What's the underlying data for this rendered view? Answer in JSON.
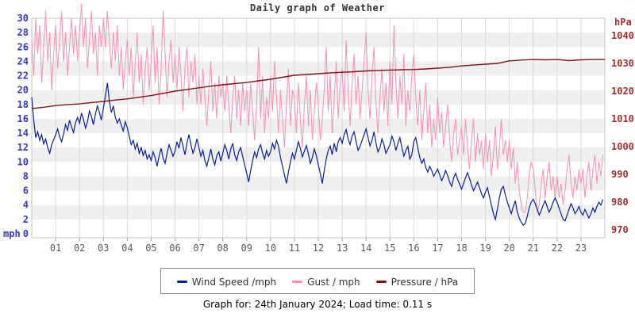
{
  "title": "Daily graph of Weather",
  "footer": {
    "text": "Graph for: 24th January 2024; Load time: 0.11 s"
  },
  "legend": {
    "items": [
      {
        "label": "Wind Speed /mph",
        "color": "#0B1F97"
      },
      {
        "label": "Gust / mph",
        "color": "#F98FB3"
      },
      {
        "label": "Pressure / hPa",
        "color": "#7C1418"
      }
    ]
  },
  "chart_data": {
    "type": "line",
    "title": "Daily graph of Weather",
    "x_unit": "hour of day (00:00-24:00)",
    "x_range": [
      0,
      24
    ],
    "x_tick_labels": [
      "01",
      "02",
      "03",
      "04",
      "05",
      "06",
      "07",
      "08",
      "09",
      "10",
      "11",
      "12",
      "13",
      "14",
      "15",
      "16",
      "17",
      "18",
      "19",
      "20",
      "21",
      "22",
      "23"
    ],
    "left_axis": {
      "label": "mph",
      "min": 0,
      "max": 30,
      "tick_step": 2,
      "color": "#3838C0"
    },
    "right_axis": {
      "label": "hPa",
      "min": 970,
      "max": 1040,
      "tick_step": 10,
      "color": "#A33030"
    },
    "style": {
      "band_fill": "#EFEFEF",
      "grid_color": "#DADADA",
      "border_color": "#C6C6C6",
      "tick_color": "#999999",
      "x_label_color": "#5A5A5A",
      "background": "#FFFFFF"
    },
    "series": [
      {
        "name": "Wind Speed /mph",
        "axis": "left",
        "color": "#0B1F97",
        "width": 1.2,
        "interval_minutes": 5,
        "values": [
          19.0,
          15.8,
          13.4,
          14.2,
          13.0,
          13.8,
          12.5,
          13.2,
          12.0,
          11.2,
          12.4,
          13.1,
          13.8,
          14.6,
          13.5,
          12.8,
          13.9,
          15.2,
          14.4,
          15.8,
          14.9,
          14.1,
          15.5,
          16.2,
          15.4,
          16.8,
          15.9,
          14.7,
          15.6,
          17.1,
          16.3,
          15.2,
          16.6,
          17.8,
          16.9,
          15.8,
          17.5,
          19.2,
          21.0,
          18.4,
          16.9,
          17.8,
          16.2,
          15.4,
          16.0,
          15.1,
          14.3,
          15.6,
          14.8,
          13.6,
          12.4,
          13.0,
          11.8,
          12.6,
          11.2,
          12.0,
          10.9,
          11.6,
          10.4,
          11.0,
          10.2,
          11.4,
          10.6,
          9.4,
          10.8,
          11.9,
          10.5,
          9.8,
          11.2,
          12.4,
          11.6,
          10.8,
          11.5,
          12.8,
          11.9,
          13.4,
          12.2,
          11.0,
          12.6,
          13.8,
          12.4,
          11.2,
          12.0,
          13.2,
          12.0,
          10.8,
          11.6,
          10.2,
          9.4,
          10.6,
          11.8,
          10.4,
          9.6,
          10.9,
          11.4,
          10.1,
          11.2,
          12.4,
          11.6,
          10.4,
          11.8,
          12.6,
          11.0,
          10.2,
          11.4,
          12.0,
          10.8,
          9.6,
          8.4,
          7.2,
          8.8,
          10.2,
          11.4,
          10.6,
          11.8,
          12.4,
          11.2,
          10.4,
          11.6,
          10.8,
          11.4,
          12.6,
          11.8,
          13.0,
          12.2,
          10.6,
          9.4,
          8.2,
          7.0,
          8.6,
          10.0,
          11.2,
          10.4,
          11.6,
          12.8,
          11.9,
          10.7,
          11.5,
          12.3,
          11.1,
          9.8,
          10.6,
          11.8,
          10.9,
          9.6,
          8.4,
          7.0,
          8.8,
          10.4,
          11.6,
          12.2,
          11.0,
          12.6,
          11.4,
          12.8,
          13.4,
          12.6,
          13.8,
          14.5,
          13.2,
          12.4,
          13.6,
          14.2,
          12.8,
          11.6,
          12.2,
          13.0,
          13.8,
          14.6,
          13.4,
          12.2,
          13.0,
          14.2,
          12.6,
          11.4,
          12.0,
          13.2,
          12.4,
          11.2,
          11.8,
          12.4,
          13.6,
          12.8,
          11.6,
          12.6,
          13.4,
          12.0,
          10.8,
          11.6,
          12.2,
          10.4,
          11.0,
          12.8,
          13.4,
          12.0,
          10.6,
          9.8,
          10.4,
          9.2,
          8.6,
          9.4,
          8.8,
          8.0,
          8.5,
          9.0,
          8.2,
          7.4,
          8.0,
          8.8,
          8.1,
          7.2,
          6.6,
          7.8,
          8.4,
          7.6,
          6.9,
          6.2,
          7.0,
          7.8,
          8.5,
          7.7,
          6.8,
          6.0,
          6.6,
          7.2,
          6.4,
          5.6,
          5.0,
          5.8,
          6.4,
          5.2,
          4.0,
          2.8,
          2.0,
          3.4,
          5.0,
          6.2,
          6.6,
          5.4,
          4.4,
          3.6,
          2.8,
          3.8,
          4.6,
          3.0,
          2.2,
          1.6,
          1.2,
          1.4,
          2.4,
          3.6,
          4.4,
          4.8,
          4.2,
          3.4,
          2.6,
          3.2,
          4.0,
          4.6,
          3.8,
          3.0,
          3.6,
          4.4,
          5.0,
          4.4,
          3.6,
          2.8,
          2.0,
          1.8,
          2.6,
          3.4,
          4.2,
          3.6,
          2.8,
          3.2,
          3.8,
          3.0,
          2.6,
          3.4,
          2.8,
          2.2,
          2.8,
          3.6,
          3.0,
          3.8,
          4.4,
          4.0,
          4.8
        ]
      },
      {
        "name": "Gust / mph",
        "axis": "left",
        "color": "#F98FB3",
        "width": 1,
        "interval_minutes": 5,
        "values": [
          27,
          22,
          30,
          25,
          29,
          21,
          26,
          31,
          24,
          28,
          20,
          25,
          29,
          23,
          27,
          31,
          24,
          28,
          22,
          26,
          30,
          25,
          29,
          24,
          28,
          32,
          26,
          30,
          23,
          27,
          31,
          25,
          28,
          22,
          29,
          26,
          30,
          26,
          31,
          27,
          23,
          28,
          24,
          29,
          22,
          26,
          20,
          24,
          27,
          22,
          26,
          19,
          24,
          28,
          21,
          25,
          18,
          23,
          26,
          20,
          24,
          29,
          21,
          26,
          18,
          23,
          31,
          25,
          19,
          24,
          27,
          21,
          25,
          20,
          26,
          22,
          17,
          23,
          26,
          19,
          24,
          21,
          25,
          18,
          22,
          18,
          23,
          19,
          15,
          20,
          24,
          17,
          21,
          16,
          22,
          19,
          21,
          17,
          22,
          18,
          14,
          19,
          22,
          16,
          20,
          15,
          21,
          17,
          20,
          15,
          21,
          17,
          13,
          18,
          26,
          16,
          22,
          14,
          19,
          16,
          22,
          17,
          24,
          19,
          14,
          20,
          16,
          12,
          18,
          23,
          15,
          20,
          19,
          14,
          21,
          16,
          12,
          18,
          22,
          15,
          20,
          13,
          17,
          21,
          18,
          13,
          16,
          20,
          26,
          17,
          22,
          14,
          19,
          24,
          16,
          21,
          23,
          17,
          27,
          20,
          15,
          21,
          25,
          18,
          22,
          16,
          20,
          24,
          28,
          20,
          16,
          22,
          26,
          18,
          14,
          19,
          23,
          17,
          21,
          15,
          24,
          18,
          29,
          21,
          16,
          22,
          18,
          25,
          15,
          20,
          17,
          22,
          25,
          19,
          15,
          20,
          13,
          17,
          21,
          14,
          18,
          12,
          16,
          13,
          19,
          14,
          17,
          12,
          15,
          18,
          13,
          10,
          14,
          16,
          11,
          13,
          15,
          11,
          16,
          12,
          9,
          13,
          16,
          10,
          14,
          11,
          13,
          9,
          14,
          10,
          13,
          8,
          11,
          15,
          9,
          12,
          16,
          11,
          13,
          10,
          13,
          9,
          12,
          7,
          10,
          6,
          4,
          3,
          3,
          5,
          8,
          10,
          9,
          6,
          3,
          4,
          7,
          9,
          5,
          8,
          10,
          6,
          8,
          5,
          8,
          5,
          7,
          4,
          6,
          9,
          11,
          7,
          5,
          8,
          6,
          9,
          7,
          9,
          5,
          8,
          10,
          6,
          9,
          11,
          7,
          10,
          8,
          11
        ]
      },
      {
        "name": "Pressure / hPa",
        "axis": "right",
        "color": "#7C1418",
        "width": 1.4,
        "interval_minutes": 30,
        "values": [
          1013.7,
          1014.2,
          1014.8,
          1015.1,
          1015.4,
          1015.9,
          1016.3,
          1016.8,
          1017.2,
          1017.8,
          1018.4,
          1019.2,
          1020.0,
          1020.6,
          1021.2,
          1021.8,
          1022.3,
          1022.7,
          1023.1,
          1023.7,
          1024.3,
          1025.0,
          1025.7,
          1026.0,
          1026.3,
          1026.6,
          1026.8,
          1027.0,
          1027.3,
          1027.5,
          1027.6,
          1027.7,
          1027.8,
          1028.0,
          1028.3,
          1028.6,
          1029.1,
          1029.4,
          1029.7,
          1030.0,
          1030.9,
          1031.2,
          1031.4,
          1031.3,
          1031.4,
          1031.0,
          1031.3,
          1031.4,
          1031.4
        ]
      }
    ]
  }
}
